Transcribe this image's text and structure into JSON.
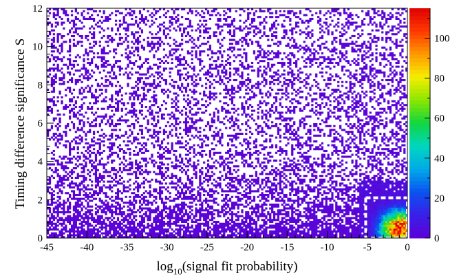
{
  "chart_data": {
    "type": "heatmap",
    "title": "",
    "xlabel": "log10(signal fit probability)",
    "xlabel_parts": {
      "base": "log",
      "sub": "10",
      "rest": "(signal fit probability)"
    },
    "ylabel": "Timing difference significance S",
    "xlim": [
      -45,
      0
    ],
    "ylim": [
      0,
      12
    ],
    "x_ticks": [
      -45,
      -40,
      -35,
      -30,
      -25,
      -20,
      -15,
      -10,
      -5,
      0
    ],
    "y_ticks": [
      0,
      2,
      4,
      6,
      8,
      10,
      12
    ],
    "colorbar": {
      "range": [
        0,
        115
      ],
      "ticks": [
        0,
        20,
        40,
        60,
        80,
        100
      ],
      "palette": [
        "#5d00d6",
        "#3a1fe8",
        "#0a52f0",
        "#00a9e8",
        "#00d6c0",
        "#10d640",
        "#8ae600",
        "#f5ee00",
        "#ff9a00",
        "#ff3a00",
        "#e00000"
      ]
    },
    "selection_box": {
      "x": [
        -5.2,
        0
      ],
      "y": [
        0,
        2.1
      ],
      "style": "white dashed"
    },
    "density_description_values": {
      "background_count": 1,
      "peak_count": 110,
      "peak_location": {
        "x": -1,
        "y": 0.5
      }
    },
    "grid": false,
    "legend": "none"
  }
}
